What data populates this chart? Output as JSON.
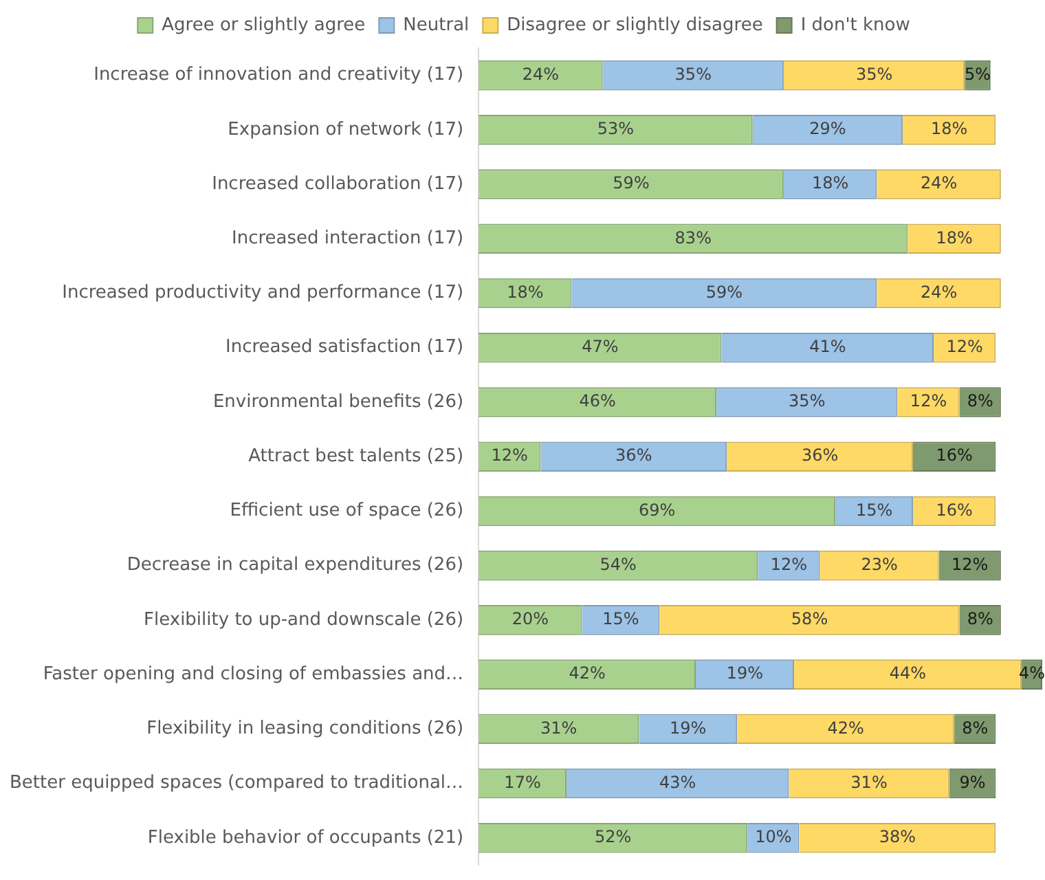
{
  "chart_data": {
    "type": "bar",
    "orientation": "horizontal",
    "stacked": true,
    "legend": "top",
    "tick_labels": "y",
    "categories": [
      "Increase of innovation and creativity (17)",
      "Expansion of network (17)",
      "Increased collaboration (17)",
      "Increased interaction (17)",
      "Increased productivity and performance (17)",
      "Increased satisfaction (17)",
      "Environmental benefits (26)",
      "Attract best talents (25)",
      "Efficient use of space (26)",
      "Decrease in capital expenditures (26)",
      "Flexibility to up-and downscale (26)",
      "Faster opening and closing of embassies and…",
      "Flexibility in leasing conditions (26)",
      "Better equipped spaces (compared to traditional…",
      "Flexible behavior of occupants (21)"
    ],
    "series": [
      {
        "name": "Agree or slightly agree",
        "color": "#a9d18e",
        "values": [
          24,
          53,
          59,
          83,
          18,
          47,
          46,
          12,
          69,
          54,
          20,
          42,
          31,
          17,
          52
        ],
        "value_labels": [
          "24%",
          "53%",
          "59%",
          "83%",
          "18%",
          "47%",
          "46%",
          "12%",
          "69%",
          "54%",
          "20%",
          "42%",
          "31%",
          "17%",
          "52%"
        ]
      },
      {
        "name": "Neutral",
        "color": "#9dc3e6",
        "values": [
          35,
          29,
          18,
          null,
          59,
          41,
          35,
          36,
          15,
          12,
          15,
          19,
          19,
          43,
          10
        ],
        "value_labels": [
          "35%",
          "29%",
          "18%",
          null,
          "59%",
          "41%",
          "35%",
          "36%",
          "15%",
          "12%",
          "15%",
          "19%",
          "19%",
          "43%",
          "10%"
        ]
      },
      {
        "name": "Disagree or slightly disagree",
        "color": "#ffd966",
        "values": [
          35,
          18,
          24,
          18,
          24,
          12,
          12,
          36,
          16,
          23,
          58,
          44,
          42,
          31,
          38
        ],
        "value_labels": [
          "35%",
          "18%",
          "24%",
          "18%",
          "24%",
          "12%",
          "12%",
          "36%",
          "16%",
          "23%",
          "58%",
          "44%",
          "42%",
          "31%",
          "38%"
        ]
      },
      {
        "name": "I don't know",
        "color": "#7f9a6e",
        "values": [
          5,
          null,
          null,
          null,
          null,
          null,
          8,
          16,
          null,
          12,
          8,
          4,
          8,
          9,
          null
        ],
        "value_labels": [
          "5%",
          null,
          null,
          null,
          null,
          null,
          "8%",
          "16%",
          null,
          "12%",
          "8%",
          "4%",
          "8%",
          "9%",
          null
        ]
      }
    ]
  }
}
